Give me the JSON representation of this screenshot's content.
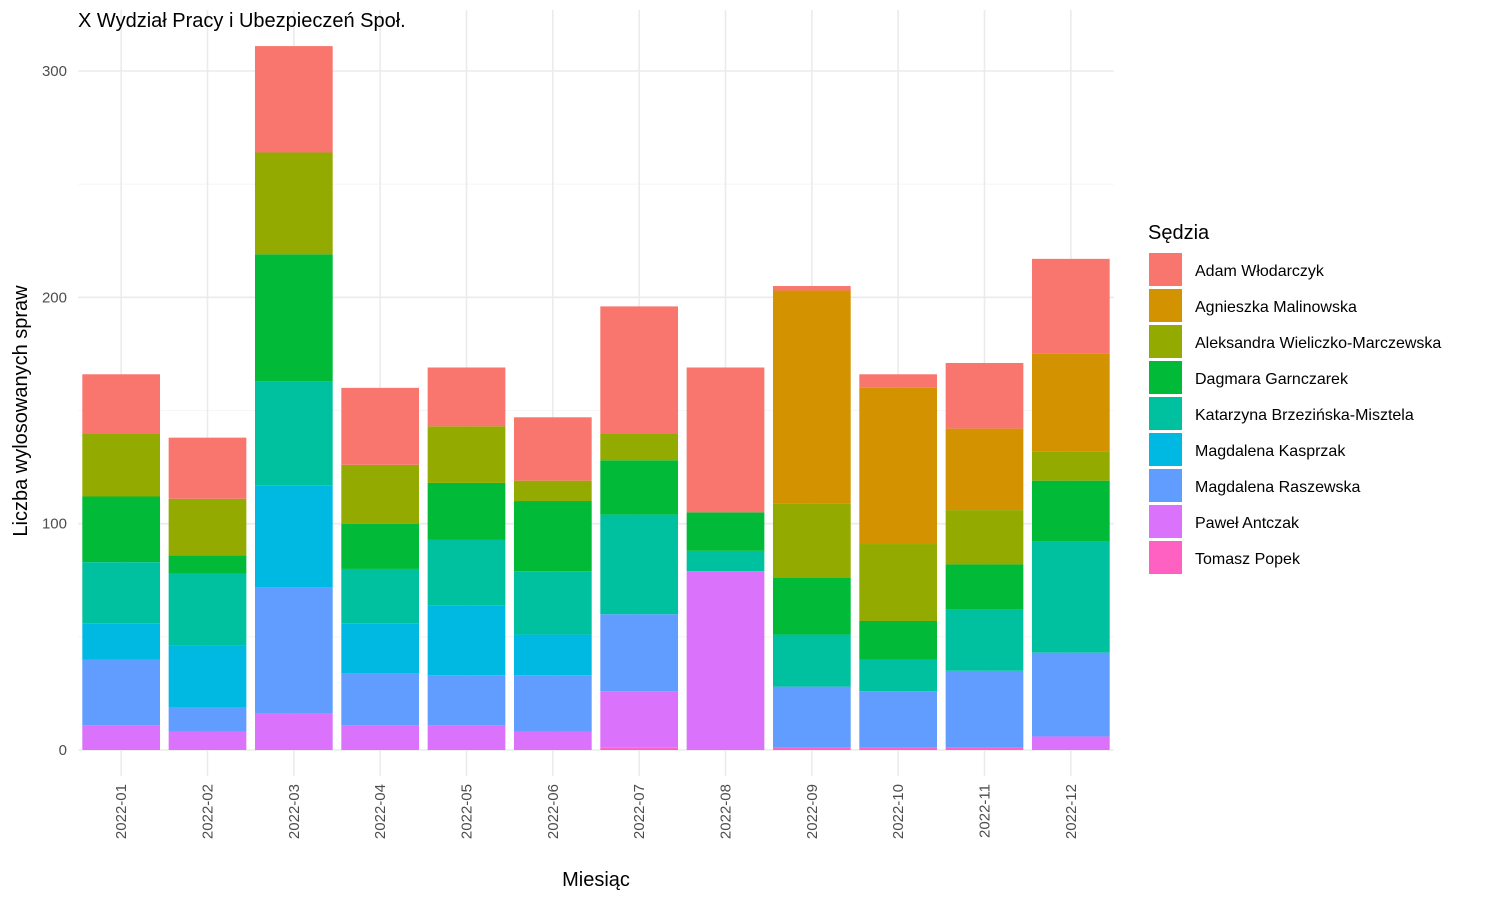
{
  "chart_data": {
    "type": "bar",
    "stacked": true,
    "title": "X Wydział Pracy i Ubezpieczeń Społ.",
    "xlabel": "Miesiąc",
    "ylabel": "Liczba wylosowanych spraw",
    "ylim": [
      -12,
      320
    ],
    "yticks": [
      0,
      100,
      200,
      300
    ],
    "grid": true,
    "legend_title": "Sędzia",
    "legend_position": "right",
    "categories": [
      "2022-01",
      "2022-02",
      "2022-03",
      "2022-04",
      "2022-05",
      "2022-06",
      "2022-07",
      "2022-08",
      "2022-09",
      "2022-10",
      "2022-11",
      "2022-12"
    ],
    "stack_order_bottom_to_top": [
      "Tomasz Popek",
      "Paweł Antczak",
      "Magdalena Raszewska",
      "Magdalena Kasprzak",
      "Katarzyna Brzezińska-Misztela",
      "Dagmara Garnczarek",
      "Aleksandra Wieliczko-Marczewska",
      "Agnieszka Malinowska",
      "Adam Włodarczyk"
    ],
    "series": [
      {
        "name": "Adam Włodarczyk",
        "color": "#F8766D",
        "values": [
          26,
          27,
          47,
          34,
          26,
          28,
          56,
          64,
          2,
          6,
          29,
          42
        ]
      },
      {
        "name": "Agnieszka Malinowska",
        "color": "#D39200",
        "values": [
          0,
          0,
          0,
          0,
          0,
          0,
          0,
          0,
          94,
          69,
          36,
          43
        ]
      },
      {
        "name": "Aleksandra Wieliczko-Marczewska",
        "color": "#93AA00",
        "values": [
          28,
          25,
          45,
          26,
          25,
          9,
          12,
          0,
          33,
          34,
          24,
          13
        ]
      },
      {
        "name": "Dagmara Garnczarek",
        "color": "#00BA38",
        "values": [
          29,
          8,
          56,
          20,
          25,
          31,
          24,
          17,
          25,
          17,
          20,
          27
        ]
      },
      {
        "name": "Katarzyna Brzezińska-Misztela",
        "color": "#00C19F",
        "values": [
          27,
          32,
          46,
          24,
          29,
          28,
          44,
          9,
          23,
          14,
          27,
          49
        ]
      },
      {
        "name": "Magdalena Kasprzak",
        "color": "#00B9E3",
        "values": [
          16,
          27,
          45,
          22,
          31,
          18,
          0,
          0,
          0,
          0,
          0,
          0
        ]
      },
      {
        "name": "Magdalena Raszewska",
        "color": "#619CFF",
        "values": [
          29,
          11,
          56,
          23,
          22,
          25,
          34,
          0,
          27,
          25,
          34,
          37
        ]
      },
      {
        "name": "Paweł Antczak",
        "color": "#DB72FB",
        "values": [
          11,
          8,
          16,
          11,
          11,
          8,
          25,
          79,
          0,
          0,
          0,
          6
        ]
      },
      {
        "name": "Tomasz Popek",
        "color": "#FF61C3",
        "values": [
          0,
          0,
          0,
          0,
          0,
          0,
          1,
          0,
          1,
          1,
          1,
          0
        ]
      }
    ]
  }
}
